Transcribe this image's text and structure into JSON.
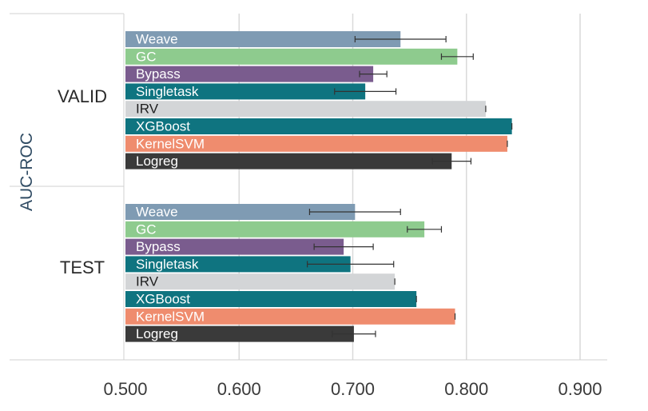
{
  "chart_data": {
    "type": "bar",
    "orientation": "horizontal",
    "ylabel": "AUC-ROC",
    "xlim": [
      0.5,
      0.9
    ],
    "xticks": [
      "0.500",
      "0.600",
      "0.700",
      "0.800",
      "0.900"
    ],
    "grid": true,
    "groups": [
      {
        "name": "VALID",
        "bars": [
          {
            "label": "Weave",
            "value": 0.742,
            "error": 0.04,
            "color": "#7f9bb3"
          },
          {
            "label": "GC",
            "value": 0.792,
            "error": 0.014,
            "color": "#8ecb8e"
          },
          {
            "label": "Bypass",
            "value": 0.718,
            "error": 0.012,
            "color": "#7a5c8e"
          },
          {
            "label": "Singletask",
            "value": 0.711,
            "error": 0.027,
            "color": "#0f7480"
          },
          {
            "label": "IRV",
            "value": 0.817,
            "error": 0.0,
            "color": "#d3d5d7"
          },
          {
            "label": "XGBoost",
            "value": 0.84,
            "error": 0.0,
            "color": "#0f7480"
          },
          {
            "label": "KernelSVM",
            "value": 0.836,
            "error": 0.0,
            "color": "#ef8c6e"
          },
          {
            "label": "Logreg",
            "value": 0.787,
            "error": 0.017,
            "color": "#3a3a3a"
          }
        ]
      },
      {
        "name": "TEST",
        "bars": [
          {
            "label": "Weave",
            "value": 0.702,
            "error": 0.04,
            "color": "#7f9bb3"
          },
          {
            "label": "GC",
            "value": 0.763,
            "error": 0.015,
            "color": "#8ecb8e"
          },
          {
            "label": "Bypass",
            "value": 0.692,
            "error": 0.026,
            "color": "#7a5c8e"
          },
          {
            "label": "Singletask",
            "value": 0.698,
            "error": 0.038,
            "color": "#0f7480"
          },
          {
            "label": "IRV",
            "value": 0.737,
            "error": 0.0,
            "color": "#d3d5d7"
          },
          {
            "label": "XGBoost",
            "value": 0.756,
            "error": 0.0,
            "color": "#0f7480"
          },
          {
            "label": "KernelSVM",
            "value": 0.79,
            "error": 0.0,
            "color": "#ef8c6e"
          },
          {
            "label": "Logreg",
            "value": 0.701,
            "error": 0.019,
            "color": "#3a3a3a"
          }
        ]
      }
    ]
  }
}
